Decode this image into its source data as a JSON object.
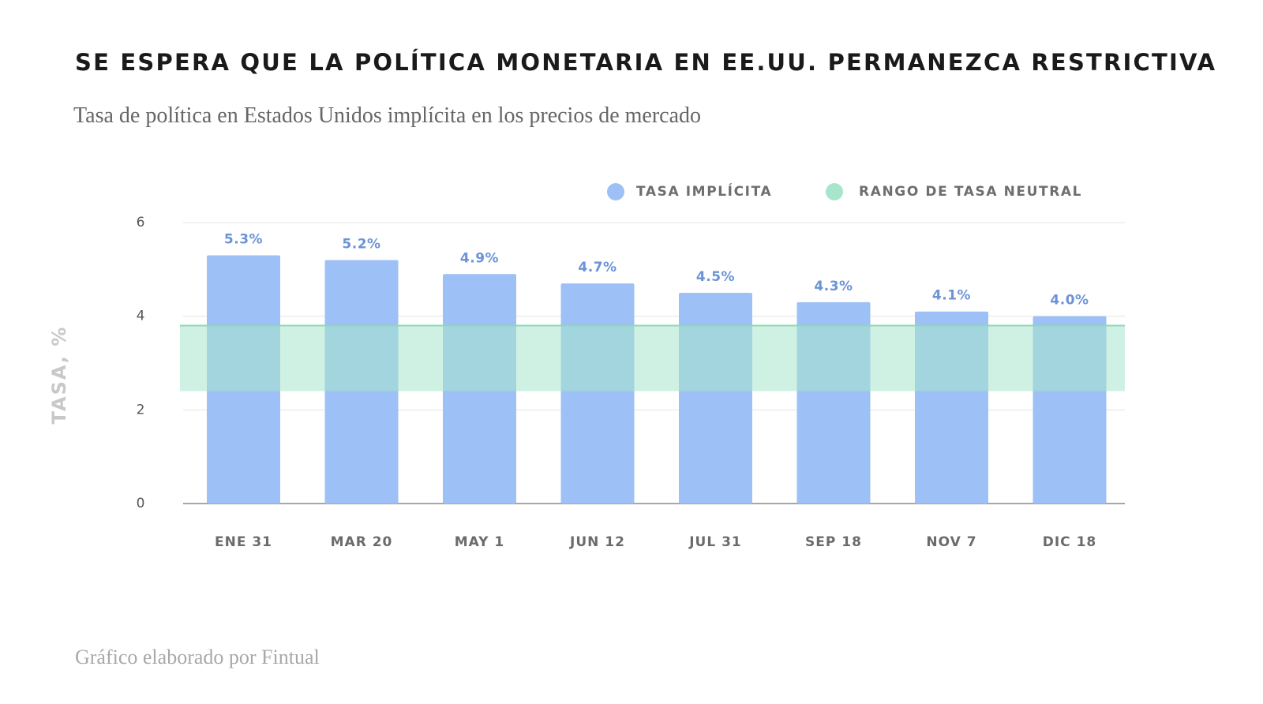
{
  "title": "SE ESPERA QUE LA POLÍTICA MONETARIA EN EE.UU. PERMANEZCA RESTRICTIVA",
  "subtitle": "Tasa de política en Estados Unidos implícita en los precios de mercado",
  "footer": "Gráfico elaborado por Fintual",
  "chart_data": {
    "type": "bar",
    "categories": [
      "ENE 31",
      "MAR 20",
      "MAY 1",
      "JUN 12",
      "JUL 31",
      "SEP 18",
      "NOV 7",
      "DIC 18"
    ],
    "series": [
      {
        "name": "TASA IMPLÍCITA",
        "values": [
          5.3,
          5.2,
          4.9,
          4.7,
          4.5,
          4.3,
          4.1,
          4.0
        ],
        "labels": [
          "5.3%",
          "5.2%",
          "4.9%",
          "4.7%",
          "4.5%",
          "4.3%",
          "4.1%",
          "4.0%"
        ],
        "color": "#9dc1f7"
      }
    ],
    "band": {
      "name": "RANGO DE TASA NEUTRAL",
      "low": 2.4,
      "high": 3.8,
      "color": "#a8e6cc"
    },
    "ylabel": "TASA, %",
    "ylim": [
      0,
      6
    ],
    "yticks": [
      0,
      2,
      4,
      6
    ],
    "ytick_labels": [
      "0",
      "2",
      "4",
      "6"
    ],
    "grid": true,
    "legend_position": "top-right",
    "label_color": "#6b93d6"
  }
}
